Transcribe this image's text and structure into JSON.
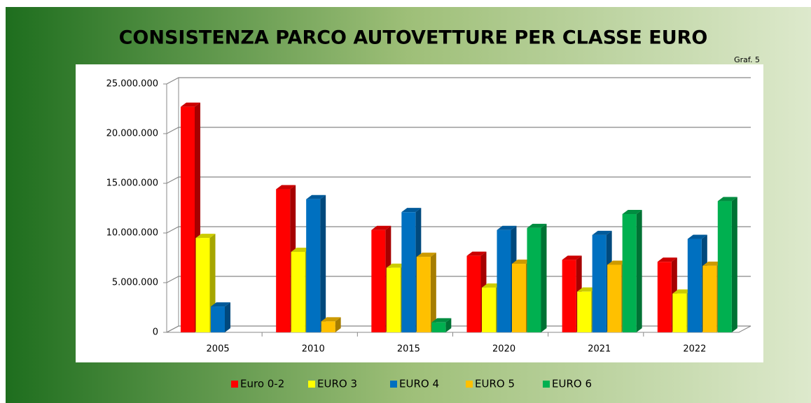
{
  "chart_data": {
    "type": "bar3d",
    "title": "CONSISTENZA PARCO AUTOVETTURE PER CLASSE EURO",
    "subtitle": "Graf. 5",
    "categories": [
      "2005",
      "2010",
      "2015",
      "2020",
      "2021",
      "2022"
    ],
    "series": [
      {
        "name": "Euro 0-2",
        "color": "#ff0000",
        "values": [
          22700000,
          14400000,
          10300000,
          7700000,
          7300000,
          7100000
        ]
      },
      {
        "name": "EURO 3",
        "color": "#ffff00",
        "values": [
          9500000,
          8100000,
          6500000,
          4500000,
          4100000,
          3900000
        ]
      },
      {
        "name": "EURO 4",
        "color": "#0070c0",
        "values": [
          2600000,
          13400000,
          12100000,
          10300000,
          9800000,
          9400000
        ]
      },
      {
        "name": "EURO 5",
        "color": "#ffc000",
        "values": [
          null,
          1100000,
          7600000,
          6900000,
          6800000,
          6700000
        ]
      },
      {
        "name": "EURO 6",
        "color": "#00b050",
        "values": [
          null,
          null,
          1000000,
          10500000,
          11900000,
          13200000
        ]
      }
    ],
    "ylim": [
      0,
      25000000
    ],
    "yticks": [
      0,
      {
        "value": 5000000,
        "label": "5.000.000"
      },
      {
        "value": 10000000,
        "label": "10.000.000"
      },
      {
        "value": 15000000,
        "label": "15.000.000"
      },
      {
        "value": 20000000,
        "label": "20.000.000"
      },
      {
        "value": 25000000,
        "label": "25.000.000"
      }
    ],
    "grid": true
  }
}
